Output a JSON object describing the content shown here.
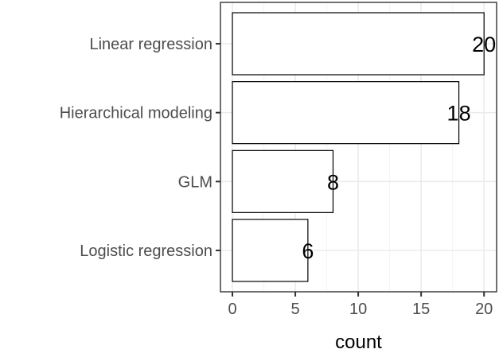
{
  "chart_data": {
    "type": "bar",
    "orientation": "horizontal",
    "categories": [
      "Linear regression",
      "Hierarchical modeling",
      "GLM",
      "Logistic regression"
    ],
    "values": [
      20,
      18,
      8,
      6
    ],
    "data_labels": [
      "20",
      "18",
      "8",
      "6"
    ],
    "xlabel": "count",
    "ylabel": "",
    "xlim": [
      -0.95,
      21
    ],
    "x_ticks": [
      0,
      5,
      10,
      15,
      20
    ],
    "x_tick_labels": [
      "0",
      "5",
      "10",
      "15",
      "20"
    ],
    "grid": true,
    "legend": "none",
    "colors": {
      "bar_fill": "#ffffff",
      "bar_stroke": "#000000",
      "grid_major": "#ebebeb",
      "grid_minor": "#f3f3f3",
      "panel_border": "#333333",
      "tick_text": "#4d4d4d"
    }
  }
}
